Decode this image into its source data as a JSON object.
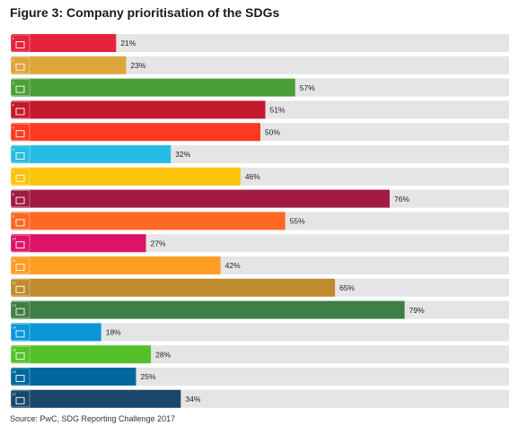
{
  "title": "Figure 3: Company prioritisation of the SDGs",
  "source": "Source: PwC, SDG Reporting Challenge 2017",
  "chart_data": {
    "type": "bar",
    "orientation": "horizontal",
    "categories": [
      "1",
      "2",
      "3",
      "4",
      "5",
      "6",
      "7",
      "8",
      "9",
      "10",
      "11",
      "12",
      "13",
      "14",
      "15",
      "16",
      "17"
    ],
    "values": [
      21,
      23,
      57,
      51,
      50,
      32,
      46,
      76,
      55,
      27,
      42,
      65,
      79,
      18,
      28,
      25,
      34
    ],
    "labels": [
      "21%",
      "23%",
      "57%",
      "51%",
      "50%",
      "32%",
      "46%",
      "76%",
      "55%",
      "27%",
      "42%",
      "65%",
      "79%",
      "18%",
      "28%",
      "25%",
      "34%"
    ],
    "colors": [
      "#e5243b",
      "#dda63a",
      "#4c9f38",
      "#c5192d",
      "#ff3a21",
      "#26bde2",
      "#fcc30b",
      "#a21942",
      "#fd6925",
      "#dd1367",
      "#fd9d24",
      "#bf8b2e",
      "#3f7e44",
      "#0a97d9",
      "#56c02b",
      "#00689d",
      "#19486a"
    ],
    "track_color": "#e5e5e5",
    "xlim": [
      0,
      100
    ],
    "title": "Figure 3: Company prioritisation of the SDGs",
    "xlabel": "",
    "ylabel": ""
  }
}
